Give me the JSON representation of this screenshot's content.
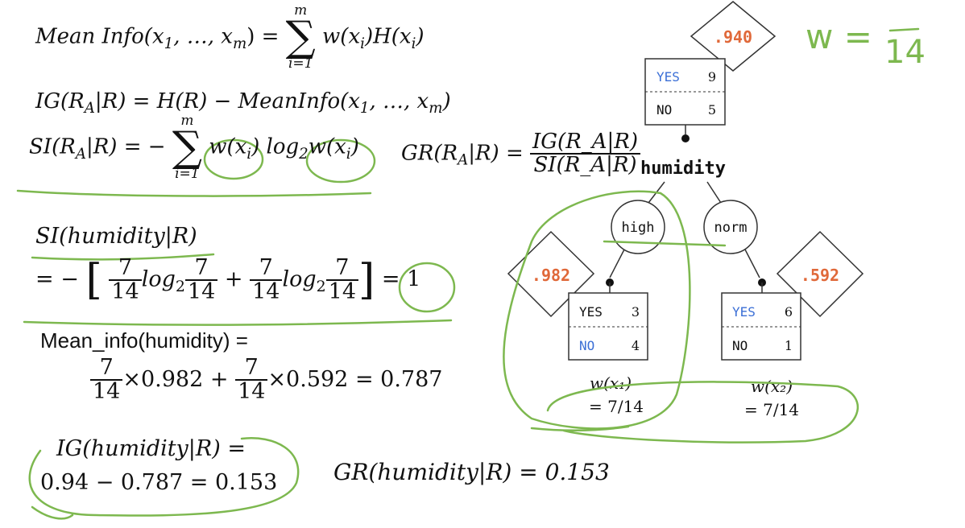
{
  "formulas": {
    "mean_info": {
      "lhs": "Mean Info(x",
      "sub1": "1",
      "mid": ", …, x",
      "subm": "m",
      "close": ") =",
      "sum_top": "m",
      "sum_bottom": "i=1",
      "rhs": "w(x",
      "sub_i": "i",
      "rhs2": ")H(x",
      "rhs3": ")"
    },
    "ig": "IG(R_A|R) = H(R) − MeanInfo(x_1, …, x_m)",
    "ig_parts": {
      "a": "IG(R",
      "sub": "A",
      "b": "|R) = H(R) − MeanInfo(x",
      "c": ", …, x",
      "d": ")"
    },
    "si": {
      "a": "SI(R",
      "sub": "A",
      "b": "|R) = −",
      "sum_top": "m",
      "sum_bottom": "i=1",
      "c": "w(x",
      "d": ") log",
      "e": "2",
      "f": "w(x",
      "g": ")"
    },
    "gr": {
      "a": "GR(R",
      "sub": "A",
      "b": "|R) =",
      "num": "IG(R_A|R)",
      "den": "SI(R_A|R)"
    },
    "si_humidity": "SI(humidity|R)",
    "si_expansion": {
      "prefix": "= −",
      "f7": "7",
      "f14": "14",
      "log": "log",
      "base": "2",
      "plus": "+",
      "eq": "=",
      "result": "1"
    },
    "mean_info_label": "Mean_info(humidity) =",
    "mean_info_calc": {
      "n": "7",
      "d": "14",
      "t1": "×0.982 +",
      "t2": "×0.592 = 0.787"
    },
    "ig_humidity_line1": "IG(humidity|R) =",
    "ig_humidity_line2": "0.94 − 0.787 = 0.153",
    "gr_humidity": "GR(humidity|R) = 0.153"
  },
  "tree": {
    "root_entropy": ".940",
    "root_node": {
      "yes_label": "YES",
      "yes_count": "9",
      "no_label": "NO",
      "no_count": "5"
    },
    "attribute": "humidity",
    "branches": [
      {
        "label": "high",
        "entropy": ".982",
        "yes_label": "YES",
        "yes_count": "3",
        "no_label": "NO",
        "no_count": "4",
        "weight_label": "w(x₁)",
        "weight_value": "= 7/14"
      },
      {
        "label": "norm",
        "entropy": ".592",
        "yes_label": "YES",
        "yes_count": "6",
        "no_label": "NO",
        "no_count": "1",
        "weight_label": "w(x₂)",
        "weight_value": "= 7/14"
      }
    ]
  },
  "handwriting": {
    "w_text": "w =",
    "w_fraction_den": "14"
  },
  "colors": {
    "entropy": "#e0693a",
    "yes_blue": "#3b6fd6",
    "ink_green": "#7db84f",
    "text": "#111111"
  }
}
